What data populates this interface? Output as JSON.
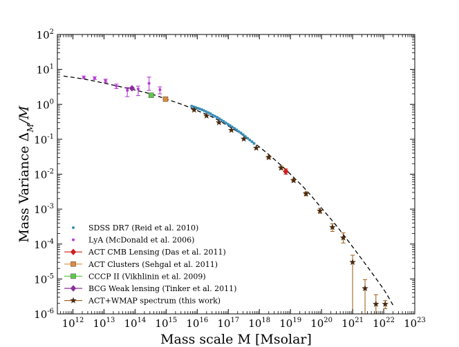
{
  "chart_data": {
    "type": "scatter",
    "xlabel": "Mass scale M [Msolar]",
    "ylabel_main": "Mass Variance Δ",
    "ylabel_sub": "M",
    "ylabel_tail": "/M",
    "x_log_range": [
      11.5,
      23
    ],
    "y_log_range": [
      -6,
      2
    ],
    "x_ticks": [
      {
        "base": "10",
        "exp": "12",
        "v": 12
      },
      {
        "base": "10",
        "exp": "13",
        "v": 13
      },
      {
        "base": "10",
        "exp": "14",
        "v": 14
      },
      {
        "base": "10",
        "exp": "15",
        "v": 15
      },
      {
        "base": "10",
        "exp": "16",
        "v": 16
      },
      {
        "base": "10",
        "exp": "17",
        "v": 17
      },
      {
        "base": "10",
        "exp": "18",
        "v": 18
      },
      {
        "base": "10",
        "exp": "19",
        "v": 19
      },
      {
        "base": "10",
        "exp": "20",
        "v": 20
      },
      {
        "base": "10",
        "exp": "21",
        "v": 21
      },
      {
        "base": "10",
        "exp": "22",
        "v": 22
      },
      {
        "base": "10",
        "exp": "23",
        "v": 23
      }
    ],
    "y_ticks": [
      {
        "base": "10",
        "exp": "-6",
        "v": -6
      },
      {
        "base": "10",
        "exp": "-5",
        "v": -5
      },
      {
        "base": "10",
        "exp": "-4",
        "v": -4
      },
      {
        "base": "10",
        "exp": "-3",
        "v": -3
      },
      {
        "base": "10",
        "exp": "-2",
        "v": -2
      },
      {
        "base": "10",
        "exp": "-1",
        "v": -1
      },
      {
        "base": "10",
        "exp": "0",
        "v": 0
      },
      {
        "base": "10",
        "exp": "1",
        "v": 1
      },
      {
        "base": "10",
        "exp": "2",
        "v": 2
      }
    ],
    "model_curve": [
      {
        "x": 11.7,
        "y": 0.81
      },
      {
        "x": 12.5,
        "y": 0.7
      },
      {
        "x": 13.5,
        "y": 0.51
      },
      {
        "x": 14.5,
        "y": 0.3
      },
      {
        "x": 15.0,
        "y": 0.15
      },
      {
        "x": 15.5,
        "y": 0.0
      },
      {
        "x": 16.0,
        "y": -0.18
      },
      {
        "x": 16.5,
        "y": -0.37
      },
      {
        "x": 17.0,
        "y": -0.62
      },
      {
        "x": 17.5,
        "y": -0.9
      },
      {
        "x": 18.0,
        "y": -1.22
      },
      {
        "x": 18.5,
        "y": -1.59
      },
      {
        "x": 19.0,
        "y": -2.0
      },
      {
        "x": 19.5,
        "y": -2.45
      },
      {
        "x": 20.0,
        "y": -2.97
      },
      {
        "x": 20.5,
        "y": -3.5
      },
      {
        "x": 21.0,
        "y": -4.08
      },
      {
        "x": 21.5,
        "y": -4.68
      },
      {
        "x": 22.0,
        "y": -5.3
      },
      {
        "x": 22.3,
        "y": -5.75
      }
    ],
    "series": [
      {
        "name": "SDSS DR7 (Reid et al. 2010)",
        "color": "#3a8fb7",
        "marker": "dot",
        "points": [
          {
            "x": 15.82,
            "y": -0.05
          },
          {
            "x": 15.88,
            "y": -0.07
          },
          {
            "x": 15.95,
            "y": -0.09
          },
          {
            "x": 16.02,
            "y": -0.11
          },
          {
            "x": 16.08,
            "y": -0.13
          },
          {
            "x": 16.15,
            "y": -0.15
          },
          {
            "x": 16.22,
            "y": -0.18
          },
          {
            "x": 16.29,
            "y": -0.21
          },
          {
            "x": 16.36,
            "y": -0.24
          },
          {
            "x": 16.43,
            "y": -0.27
          },
          {
            "x": 16.5,
            "y": -0.31
          },
          {
            "x": 16.57,
            "y": -0.34
          },
          {
            "x": 16.64,
            "y": -0.37
          },
          {
            "x": 16.71,
            "y": -0.41
          },
          {
            "x": 16.78,
            "y": -0.45
          },
          {
            "x": 16.85,
            "y": -0.49
          },
          {
            "x": 16.92,
            "y": -0.53
          },
          {
            "x": 16.99,
            "y": -0.57
          },
          {
            "x": 17.06,
            "y": -0.61
          },
          {
            "x": 17.13,
            "y": -0.65
          },
          {
            "x": 17.2,
            "y": -0.69
          },
          {
            "x": 17.27,
            "y": -0.73
          },
          {
            "x": 17.34,
            "y": -0.78
          },
          {
            "x": 17.41,
            "y": -0.82
          },
          {
            "x": 17.48,
            "y": -0.87
          },
          {
            "x": 17.55,
            "y": -0.92
          },
          {
            "x": 17.62,
            "y": -0.97
          },
          {
            "x": 17.69,
            "y": -1.02
          },
          {
            "x": 17.76,
            "y": -1.07
          },
          {
            "x": 17.83,
            "y": -1.12
          }
        ]
      },
      {
        "name": "LyA (McDonald et al. 2006)",
        "color": "#b73bd6",
        "marker": "dot",
        "points": [
          {
            "x": 12.35,
            "y": 0.77,
            "lo": 0.74,
            "hi": 0.81
          },
          {
            "x": 12.7,
            "y": 0.75,
            "lo": 0.71,
            "hi": 0.79
          },
          {
            "x": 13.05,
            "y": 0.68,
            "lo": 0.63,
            "hi": 0.72
          },
          {
            "x": 13.4,
            "y": 0.52,
            "lo": 0.45,
            "hi": 0.58
          },
          {
            "x": 13.75,
            "y": 0.4,
            "lo": 0.22,
            "hi": 0.48
          },
          {
            "x": 14.1,
            "y": 0.44,
            "lo": 0.25,
            "hi": 0.52
          },
          {
            "x": 14.45,
            "y": 0.6,
            "lo": 0.4,
            "hi": 0.78
          },
          {
            "x": 14.8,
            "y": 0.42,
            "lo": 0.3,
            "hi": 0.5
          }
        ]
      },
      {
        "name": "ACT CMB Lensing (Das et al. 2011)",
        "color": "#cc1f1f",
        "marker": "diamond",
        "points": [
          {
            "x": 18.85,
            "y": -1.92,
            "lo": -2.0,
            "hi": -1.85
          }
        ]
      },
      {
        "name": "ACT Clusters (Sehgal et al. 2011)",
        "color": "#e08a3a",
        "marker": "square",
        "points": [
          {
            "x": 14.98,
            "y": 0.15
          }
        ]
      },
      {
        "name": "CCCP II (Vikhlinin et al. 2009)",
        "color": "#5ec94a",
        "marker": "square",
        "points": [
          {
            "x": 14.52,
            "y": 0.26
          }
        ]
      },
      {
        "name": "BCG Weak lensing (Tinker et al. 2011)",
        "color": "#8a2f9c",
        "marker": "diamond",
        "points": [
          {
            "x": 13.9,
            "y": 0.46,
            "lo": 0.43,
            "hi": 0.49
          }
        ]
      },
      {
        "name": "ACT+WMAP spectrum (this work)",
        "color": "#4a2a10",
        "errcolor": "#a0661e",
        "marker": "star",
        "points": [
          {
            "x": 15.9,
            "y": -0.16
          },
          {
            "x": 16.3,
            "y": -0.33
          },
          {
            "x": 16.7,
            "y": -0.52
          },
          {
            "x": 17.1,
            "y": -0.74
          },
          {
            "x": 17.5,
            "y": -0.99
          },
          {
            "x": 17.9,
            "y": -1.25
          },
          {
            "x": 18.3,
            "y": -1.52,
            "lo": -1.56,
            "hi": -1.48
          },
          {
            "x": 18.7,
            "y": -1.82,
            "lo": -1.87,
            "hi": -1.77
          },
          {
            "x": 19.1,
            "y": -2.18,
            "lo": -2.22,
            "hi": -2.13
          },
          {
            "x": 19.5,
            "y": -2.56,
            "lo": -2.62,
            "hi": -2.51
          },
          {
            "x": 19.95,
            "y": -3.05,
            "lo": -3.12,
            "hi": -2.98
          },
          {
            "x": 20.35,
            "y": -3.52,
            "lo": -3.64,
            "hi": -3.42
          },
          {
            "x": 20.7,
            "y": -3.82,
            "lo": -3.97,
            "hi": -3.68
          },
          {
            "x": 21.0,
            "y": -4.52,
            "lo": -6.0,
            "hi": -4.32
          },
          {
            "x": 21.4,
            "y": -5.27,
            "lo": -6.0,
            "hi": -5.02
          },
          {
            "x": 21.75,
            "y": -5.72,
            "lo": -6.0,
            "hi": -5.45
          },
          {
            "x": 22.05,
            "y": -5.72,
            "lo": -5.85,
            "hi": -5.62
          }
        ]
      }
    ]
  }
}
